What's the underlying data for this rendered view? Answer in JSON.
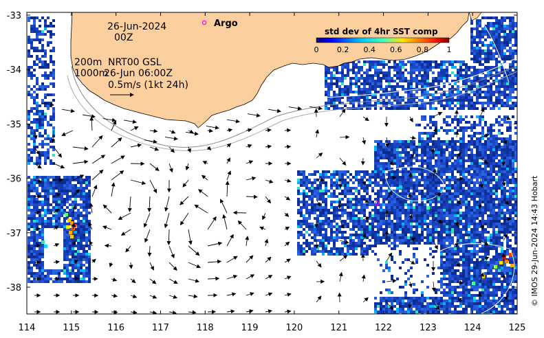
{
  "map": {
    "date_line1": "26-Jun-2024",
    "date_line2": "00Z",
    "depth_line1": "200m",
    "depth_line2": "1000m",
    "product": "NRT00 GSL",
    "product_time": "26-Jun 06:00Z",
    "scale_label": "0.5m/s (1kt 24h)",
    "legend_argo": "Argo",
    "colorbar_title": "std dev of 4hr SST comp",
    "colorbar_ticks": [
      "0",
      "0.2",
      "0.4",
      "0.6",
      "0.8",
      "1"
    ],
    "credit": "© IMOS 29-Jun-2024 14:43 Hobart",
    "lon_ticks": [
      "114",
      "115",
      "116",
      "117",
      "118",
      "119",
      "120",
      "121",
      "122",
      "123",
      "124",
      "125"
    ],
    "lat_ticks": [
      "-33",
      "-34",
      "-35",
      "-36",
      "-37",
      "-38"
    ],
    "colors": {
      "land": "#fccf9e",
      "ocean": "#ffffff",
      "low_sst_std": "#1c3fb8",
      "argo_marker": "#ff00ff"
    }
  }
}
